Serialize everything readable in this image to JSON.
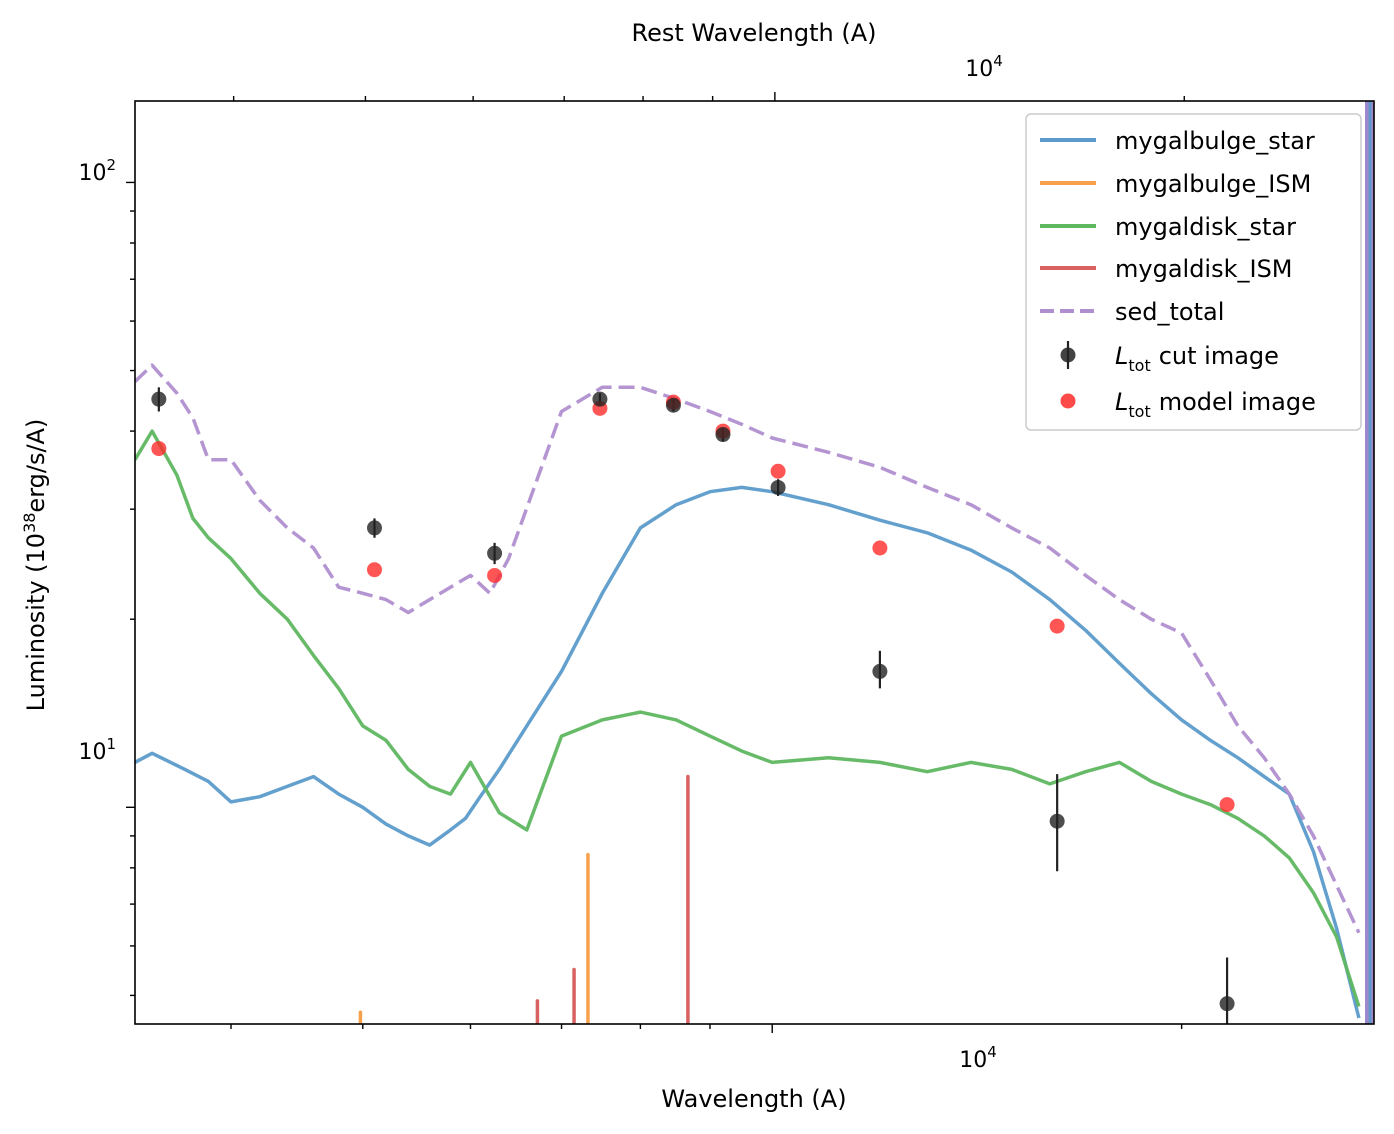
{
  "chart_data": {
    "type": "line",
    "xlabel": "Wavelength (A)",
    "ylabel_base": "Luminosity (10",
    "ylabel_exp": "38",
    "ylabel_rest": "erg/s/A)",
    "top_xlabel": "Rest Wavelength (A)",
    "xscale": "log",
    "yscale": "log",
    "xlim": [
      3400,
      27700
    ],
    "ylim": [
      4.5,
      135
    ],
    "grid": false,
    "legend_position": "top-right",
    "tick_labels": {
      "x_base": "10",
      "x_exp": "4",
      "y_100_base": "10",
      "y_100_exp": "2",
      "y_10_base": "10",
      "y_10_exp": "1"
    },
    "colors": {
      "mygalbulge_star": "#5b9bcb",
      "mygalbulge_ISM": "#f8a14a",
      "mygaldisk_star": "#5fb760",
      "mygaldisk_ISM": "#d96161",
      "sed_total": "#b08fd0",
      "cut": "#222222",
      "model": "#ff2a2a"
    },
    "legend": {
      "s1": "mygalbulge_star",
      "s2": "mygalbulge_ISM",
      "s3": "mygaldisk_star",
      "s4": "mygaldisk_ISM",
      "s5": "sed_total",
      "cut_sym": "L",
      "cut_sub": "tot",
      "cut_rest": "cut image",
      "model_sym": "L",
      "model_sub": "tot",
      "model_rest": "model image"
    },
    "series": [
      {
        "name": "mygalbulge_star",
        "style": "solid",
        "x": [
          3400,
          3500,
          3700,
          3850,
          4000,
          4200,
          4400,
          4600,
          4800,
          5000,
          5200,
          5400,
          5600,
          5800,
          5950,
          6100,
          6300,
          6600,
          7000,
          7500,
          8000,
          8500,
          9000,
          9500,
          10000,
          11000,
          12000,
          13000,
          14000,
          15000,
          16000,
          17000,
          18000,
          19000,
          20000,
          21000,
          22000,
          23000,
          24000,
          25000,
          26000,
          27000
        ],
        "y": [
          11.8,
          12.2,
          11.5,
          11.0,
          10.2,
          10.4,
          10.8,
          11.2,
          10.5,
          10.0,
          9.4,
          9.0,
          8.7,
          9.2,
          9.6,
          10.4,
          11.5,
          13.5,
          16.5,
          22,
          28,
          30.5,
          32,
          32.5,
          32,
          30.5,
          28.8,
          27.5,
          25.8,
          23.8,
          21.5,
          19.2,
          17.0,
          15.2,
          13.8,
          12.8,
          12.0,
          11.2,
          10.5,
          8.5,
          6.4,
          4.6
        ]
      },
      {
        "name": "mygaldisk_star",
        "style": "solid",
        "x": [
          3400,
          3500,
          3650,
          3750,
          3850,
          4000,
          4200,
          4400,
          4600,
          4800,
          5000,
          5200,
          5400,
          5600,
          5800,
          6000,
          6300,
          6600,
          7000,
          7500,
          8000,
          8500,
          9000,
          9500,
          10000,
          11000,
          12000,
          13000,
          14000,
          15000,
          16000,
          17000,
          18000,
          19000,
          20000,
          21000,
          22000,
          23000,
          24000,
          25000,
          26000,
          27000
        ],
        "y": [
          36,
          40,
          34,
          29,
          27,
          25,
          22,
          20,
          17.5,
          15.5,
          13.5,
          12.8,
          11.5,
          10.8,
          10.5,
          11.8,
          9.8,
          9.2,
          13.0,
          13.8,
          14.2,
          13.8,
          13.0,
          12.3,
          11.8,
          12.0,
          11.8,
          11.4,
          11.8,
          11.5,
          10.9,
          11.4,
          11.8,
          11.0,
          10.5,
          10.1,
          9.6,
          9.0,
          8.3,
          7.3,
          6.2,
          4.8
        ]
      },
      {
        "name": "sed_total",
        "style": "dashed",
        "x": [
          3400,
          3500,
          3650,
          3750,
          3850,
          4000,
          4200,
          4400,
          4600,
          4800,
          5000,
          5200,
          5400,
          5600,
          5800,
          6000,
          6200,
          6400,
          6700,
          7000,
          7500,
          8000,
          8500,
          9000,
          9500,
          10000,
          11000,
          12000,
          13000,
          14000,
          15000,
          16000,
          17000,
          18000,
          19000,
          20000,
          21000,
          22000,
          23000,
          24000,
          25000,
          26000,
          27000
        ],
        "y": [
          48,
          51,
          46,
          42,
          36,
          36,
          31,
          28,
          26,
          22.5,
          22,
          21.5,
          20.5,
          21.5,
          22.5,
          23.5,
          22,
          25,
          33,
          43,
          47,
          47,
          45,
          43,
          41,
          39,
          37,
          35,
          32.5,
          30.5,
          28,
          26,
          23.5,
          21.5,
          20,
          19,
          16,
          13.5,
          12,
          10.5,
          9.0,
          7.5,
          6.3
        ]
      }
    ],
    "emission_lines": [
      {
        "name": "mygalbulge_ISM",
        "x": 4980,
        "y": 4.7
      },
      {
        "name": "mygalbulge_ISM",
        "x": 7320,
        "y": 8.4
      },
      {
        "name": "mygaldisk_ISM",
        "x": 6720,
        "y": 4.9
      },
      {
        "name": "mygaldisk_ISM",
        "x": 7150,
        "y": 5.5
      },
      {
        "name": "mygaldisk_ISM",
        "x": 8670,
        "y": 11.2
      }
    ],
    "cut_image_points": [
      {
        "x": 3540,
        "y": 45.0,
        "err_low": 2.0,
        "err_high": 2.0
      },
      {
        "x": 5100,
        "y": 28.0,
        "err_low": 1.0,
        "err_high": 1.0
      },
      {
        "x": 6250,
        "y": 25.5,
        "err_low": 1.0,
        "err_high": 1.0
      },
      {
        "x": 7470,
        "y": 45.0,
        "err_low": 1.0,
        "err_high": 1.0
      },
      {
        "x": 8460,
        "y": 44.0,
        "err_low": 1.0,
        "err_high": 1.0
      },
      {
        "x": 9200,
        "y": 39.5,
        "err_low": 1.0,
        "err_high": 1.0
      },
      {
        "x": 10100,
        "y": 32.5,
        "err_low": 1.0,
        "err_high": 1.0
      },
      {
        "x": 12000,
        "y": 16.5,
        "err_low": 1.0,
        "err_high": 1.3
      },
      {
        "x": 16200,
        "y": 9.5,
        "err_low": 1.6,
        "err_high": 1.8
      },
      {
        "x": 21600,
        "y": 4.85,
        "err_low": 0.7,
        "err_high": 0.9
      }
    ],
    "model_image_points": [
      {
        "x": 3540,
        "y": 37.5
      },
      {
        "x": 5100,
        "y": 24.0
      },
      {
        "x": 6250,
        "y": 23.5
      },
      {
        "x": 7470,
        "y": 43.5
      },
      {
        "x": 8460,
        "y": 44.5
      },
      {
        "x": 9200,
        "y": 40.0
      },
      {
        "x": 10100,
        "y": 34.5
      },
      {
        "x": 12000,
        "y": 26.0
      },
      {
        "x": 16200,
        "y": 19.5
      },
      {
        "x": 21600,
        "y": 10.1
      }
    ]
  }
}
